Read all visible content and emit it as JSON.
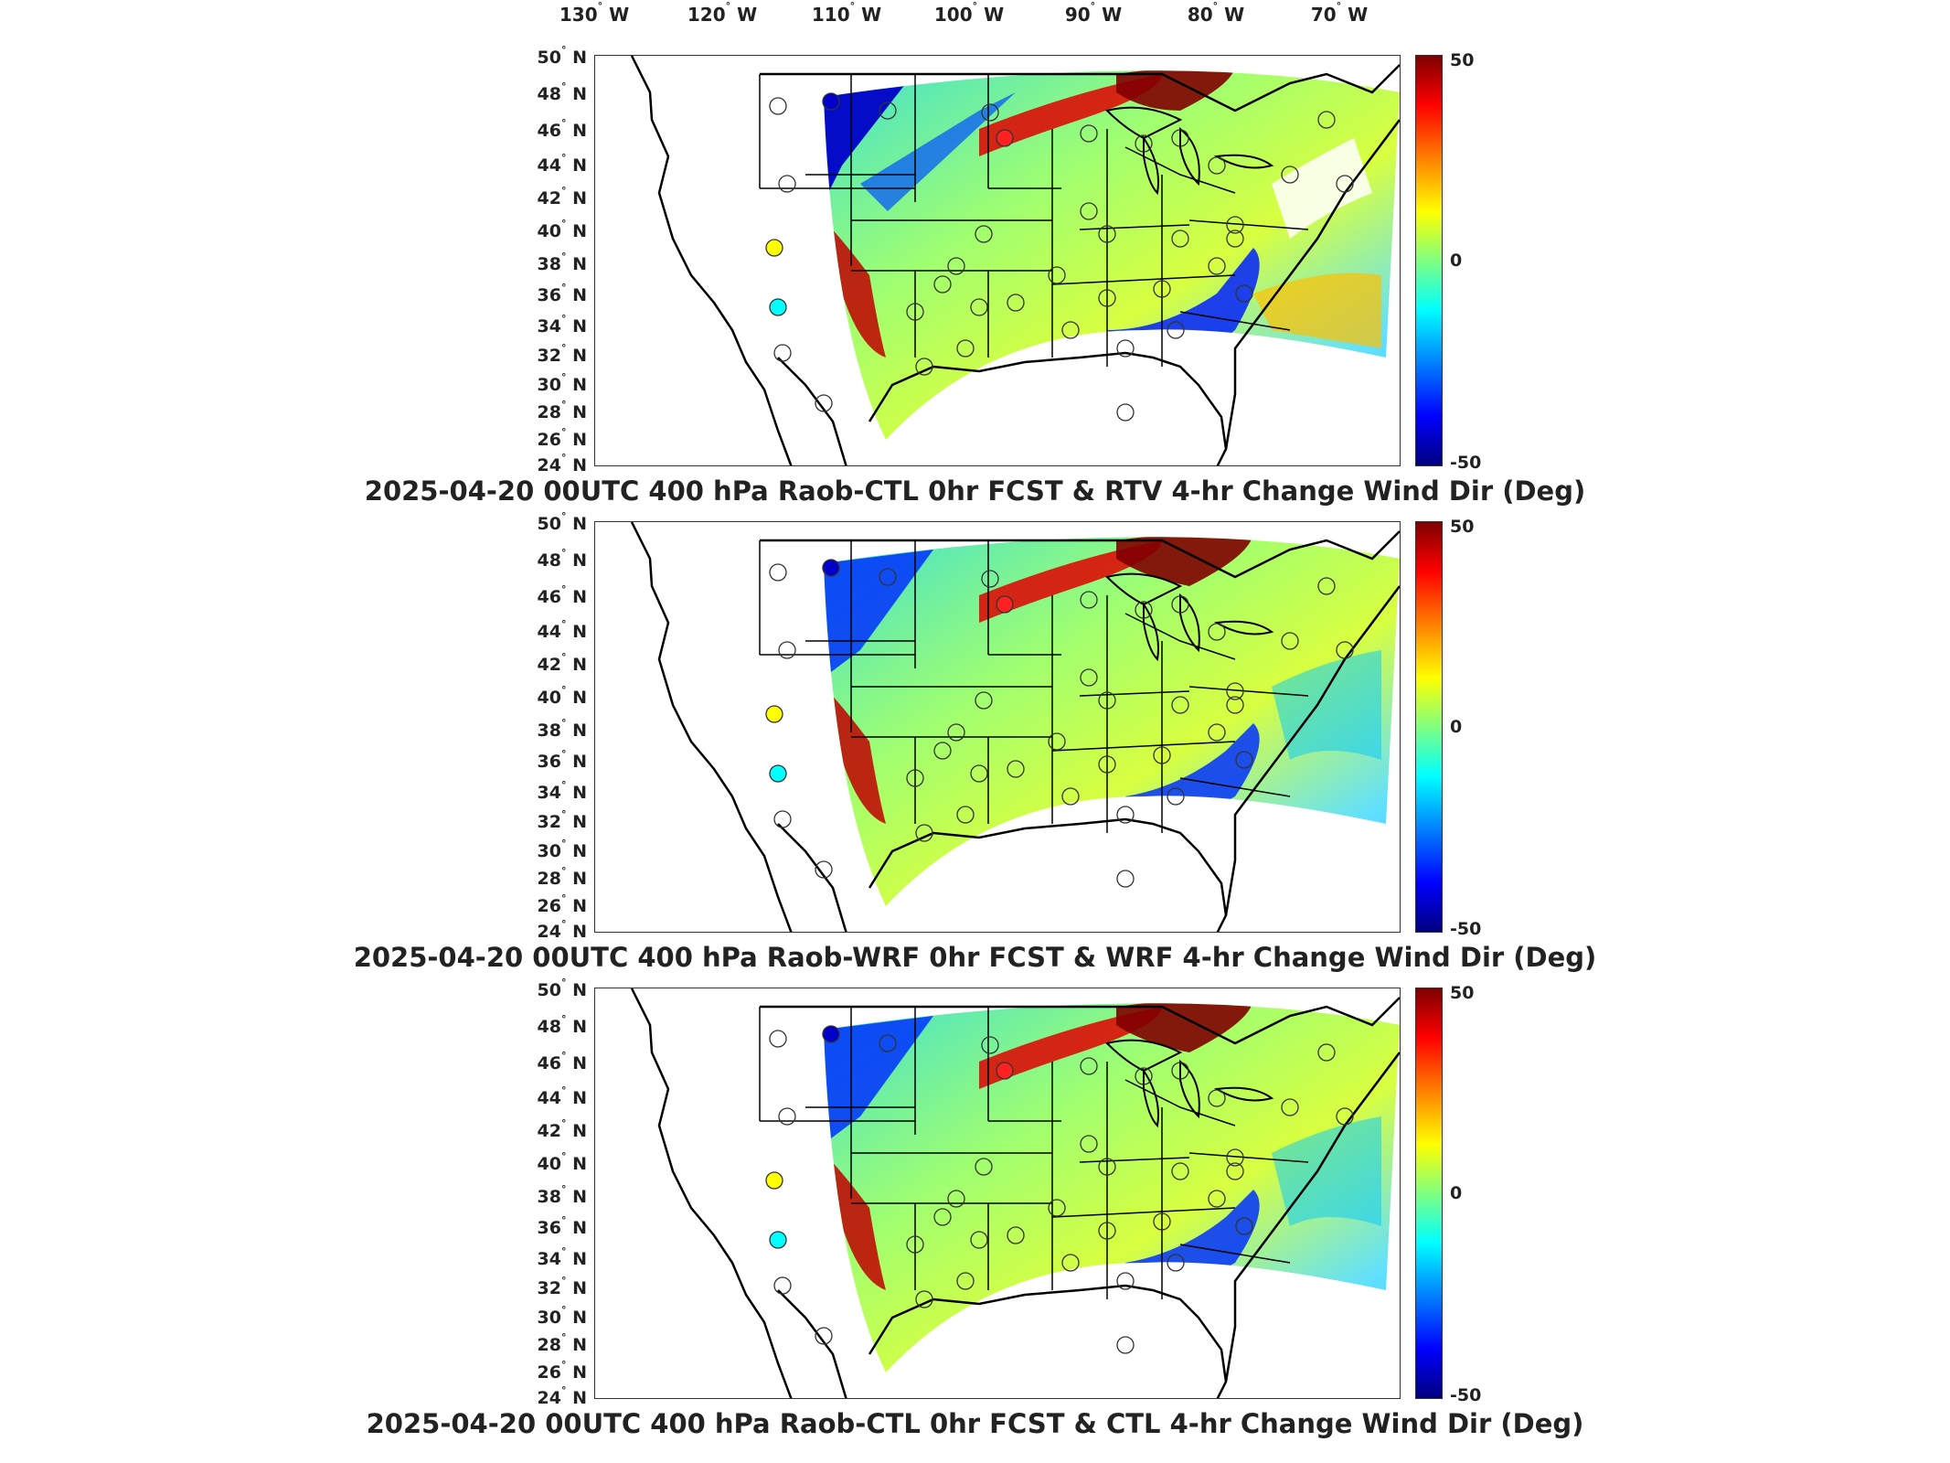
{
  "longitude_labels": [
    {
      "deg": "130",
      "hemi": "W"
    },
    {
      "deg": "120",
      "hemi": "W"
    },
    {
      "deg": "110",
      "hemi": "W"
    },
    {
      "deg": "100",
      "hemi": "W"
    },
    {
      "deg": "90",
      "hemi": "W"
    },
    {
      "deg": "80",
      "hemi": "W"
    },
    {
      "deg": "70",
      "hemi": "W"
    }
  ],
  "latitude_labels": [
    {
      "deg": "50",
      "hemi": "N"
    },
    {
      "deg": "48",
      "hemi": "N"
    },
    {
      "deg": "46",
      "hemi": "N"
    },
    {
      "deg": "44",
      "hemi": "N"
    },
    {
      "deg": "42",
      "hemi": "N"
    },
    {
      "deg": "40",
      "hemi": "N"
    },
    {
      "deg": "38",
      "hemi": "N"
    },
    {
      "deg": "36",
      "hemi": "N"
    },
    {
      "deg": "34",
      "hemi": "N"
    },
    {
      "deg": "32",
      "hemi": "N"
    },
    {
      "deg": "30",
      "hemi": "N"
    },
    {
      "deg": "28",
      "hemi": "N"
    },
    {
      "deg": "26",
      "hemi": "N"
    },
    {
      "deg": "24",
      "hemi": "N"
    }
  ],
  "degree_symbol": "°",
  "colorbar": {
    "max_label": "50",
    "mid_label": "0",
    "min_label": "-50",
    "colormap": "jet"
  },
  "panels": [
    {
      "title": "2025-04-20 00UTC 400 hPa Raob-CTL 0hr FCST & RTV 4-hr Change Wind Dir (Deg)"
    },
    {
      "title": "2025-04-20 00UTC 400 hPa Raob-WRF 0hr FCST & WRF 4-hr Change Wind Dir (Deg)"
    },
    {
      "title": "2025-04-20 00UTC 400 hPa Raob-CTL 0hr FCST & CTL 4-hr Change Wind Dir (Deg)"
    }
  ],
  "colors": {
    "dark_red": "#7f0000",
    "red": "#ff0000",
    "orange": "#ff8000",
    "yellow": "#ffff00",
    "green": "#80ff80",
    "cyan": "#00ffff",
    "blue": "#0000ff",
    "dark_blue": "#00007f"
  }
}
